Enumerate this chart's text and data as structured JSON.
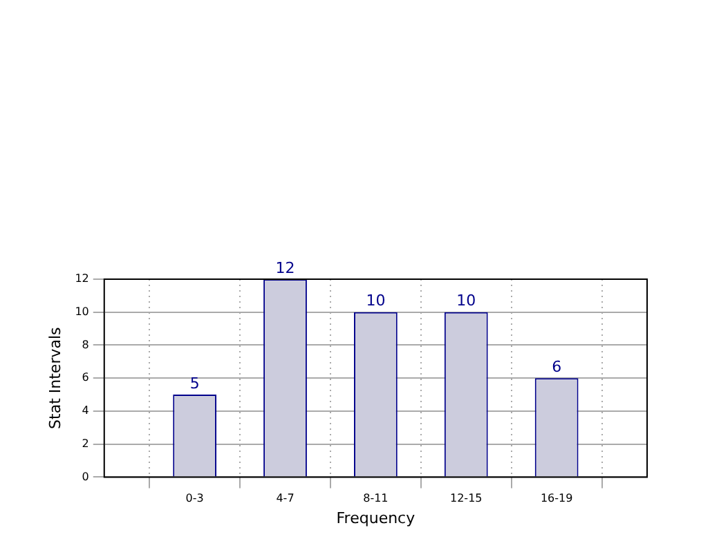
{
  "chart_data": {
    "type": "bar",
    "xlabel": "Frequency",
    "ylabel": "Stat Intervals",
    "categories": [
      "0-3",
      "4-7",
      "8-11",
      "12-15",
      "16-19"
    ],
    "values": [
      5,
      12,
      10,
      10,
      6
    ],
    "color": "#ccccdd",
    "data_labels": true,
    "ylim": [
      0,
      12
    ],
    "yticks": [
      0,
      2,
      4,
      6,
      8,
      10,
      12
    ],
    "grid": true,
    "legend": false
  }
}
